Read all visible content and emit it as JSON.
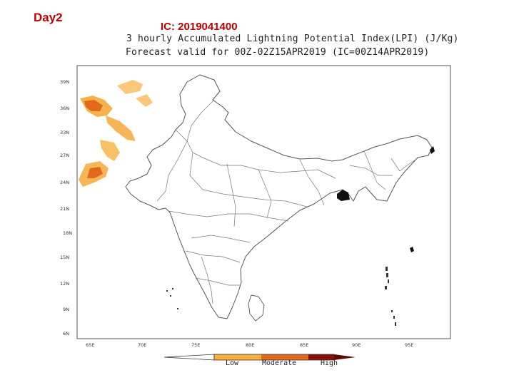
{
  "header": {
    "day_label": "Day2",
    "ic_label": "IC: 2019041400",
    "title_line1": "3 hourly Accumulated Lightning Potential Index(LPI) (J/Kg)",
    "title_line2": "Forecast valid for 00Z-02Z15APR2019 (IC=00Z14APR2019)"
  },
  "map": {
    "lat_ticks": [
      "39N",
      "36N",
      "33N",
      "27N",
      "24N",
      "21N",
      "18N",
      "15N",
      "12N",
      "9N",
      "6N"
    ],
    "lon_ticks": [
      "65E",
      "70E",
      "75E",
      "80E",
      "85E",
      "90E",
      "95E"
    ],
    "region": "India"
  },
  "legend": {
    "items": [
      {
        "label": "Low",
        "color": "#f8b13e"
      },
      {
        "label": "Moderate",
        "color": "#e2681a"
      },
      {
        "label": "High",
        "color": "#8b1005"
      }
    ]
  }
}
